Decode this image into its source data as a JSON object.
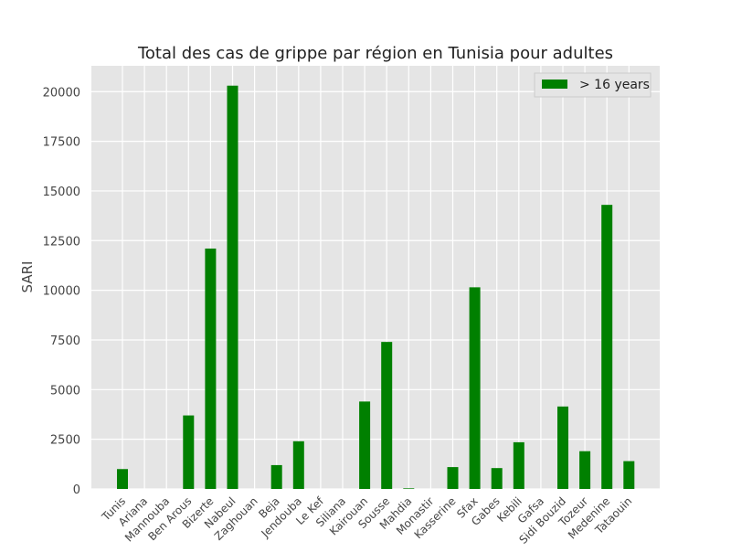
{
  "chart_data": {
    "type": "bar",
    "title": "Total des cas de grippe par région en Tunisia pour adultes",
    "xlabel": "",
    "ylabel": "SARI",
    "ylim": [
      0,
      21300
    ],
    "yticks": [
      0,
      2500,
      5000,
      7500,
      10000,
      12500,
      15000,
      17500,
      20000
    ],
    "grid": true,
    "legend_position": "top-right",
    "categories": [
      "Tunis",
      "Ariana",
      "Mannouba",
      "Ben Arous",
      "Bizerte",
      "Nabeul",
      "Zaghouan",
      "Beja",
      "Jendouba",
      "Le Kef",
      "Siliana",
      "Kairouan",
      "Sousse",
      "Mahdia",
      "Monastir",
      "Kasserine",
      "Sfax",
      "Gabes",
      "Kebili",
      "Gafsa",
      "Sidi Bouzid",
      "Tozeur",
      "Medenine",
      "Tataouin"
    ],
    "series": [
      {
        "name": "> 16 years",
        "color": "#008000",
        "values": [
          1000,
          0,
          0,
          3700,
          12100,
          20300,
          0,
          1200,
          2400,
          0,
          0,
          4400,
          7400,
          30,
          0,
          1100,
          10150,
          1050,
          2350,
          0,
          4150,
          1900,
          14300,
          1400
        ]
      }
    ]
  }
}
